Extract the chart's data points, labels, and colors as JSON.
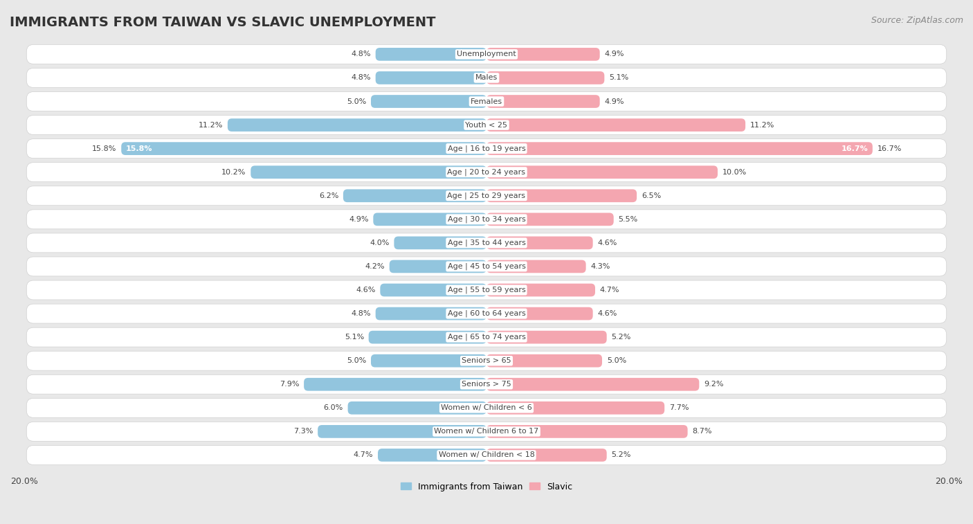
{
  "title": "IMMIGRANTS FROM TAIWAN VS SLAVIC UNEMPLOYMENT",
  "source": "Source: ZipAtlas.com",
  "categories": [
    "Unemployment",
    "Males",
    "Females",
    "Youth < 25",
    "Age | 16 to 19 years",
    "Age | 20 to 24 years",
    "Age | 25 to 29 years",
    "Age | 30 to 34 years",
    "Age | 35 to 44 years",
    "Age | 45 to 54 years",
    "Age | 55 to 59 years",
    "Age | 60 to 64 years",
    "Age | 65 to 74 years",
    "Seniors > 65",
    "Seniors > 75",
    "Women w/ Children < 6",
    "Women w/ Children 6 to 17",
    "Women w/ Children < 18"
  ],
  "taiwan_values": [
    4.8,
    4.8,
    5.0,
    11.2,
    15.8,
    10.2,
    6.2,
    4.9,
    4.0,
    4.2,
    4.6,
    4.8,
    5.1,
    5.0,
    7.9,
    6.0,
    7.3,
    4.7
  ],
  "slavic_values": [
    4.9,
    5.1,
    4.9,
    11.2,
    16.7,
    10.0,
    6.5,
    5.5,
    4.6,
    4.3,
    4.7,
    4.6,
    5.2,
    5.0,
    9.2,
    7.7,
    8.7,
    5.2
  ],
  "taiwan_color": "#92c5de",
  "slavic_color": "#f4a6b0",
  "taiwan_label": "Immigrants from Taiwan",
  "slavic_label": "Slavic",
  "xlim": 20.0,
  "x_tick_label": "20.0%",
  "background_color": "#e8e8e8",
  "row_bg_color": "#f5f5f5",
  "row_border_color": "#d0d0d0",
  "title_fontsize": 14,
  "source_fontsize": 9,
  "label_fontsize": 8,
  "value_fontsize": 8
}
